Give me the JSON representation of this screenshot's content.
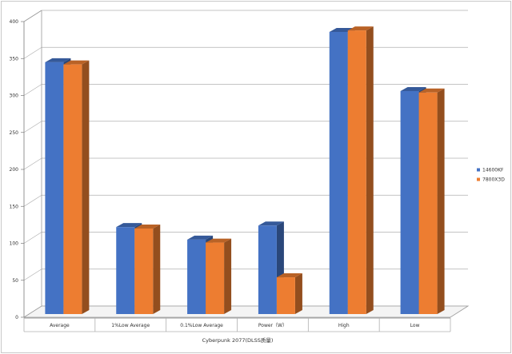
{
  "chart_data": {
    "type": "bar",
    "title": "",
    "xlabel": "Cyberpunk 2077(DLSS质量)",
    "ylabel": "",
    "ylim": [
      0,
      400
    ],
    "yticks": [
      0,
      50,
      100,
      150,
      200,
      250,
      300,
      350,
      400
    ],
    "grid": true,
    "legend_position": "right",
    "categories": [
      "Average",
      "1%Low Average",
      "0.1%Low Average",
      "Power（W）",
      "High",
      "Low"
    ],
    "series": [
      {
        "name": "14600KF",
        "color": "#4472C4",
        "values": [
          345,
          122,
          105,
          124,
          386,
          306
        ]
      },
      {
        "name": "7800X3D",
        "color": "#ED7D31",
        "values": [
          342,
          120,
          101,
          54,
          388,
          304
        ]
      }
    ]
  }
}
